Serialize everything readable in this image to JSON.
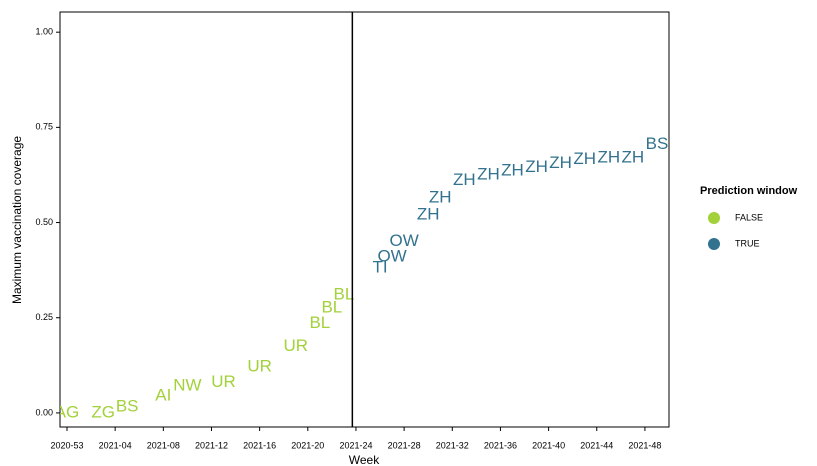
{
  "chart_data": {
    "type": "text-scatter",
    "x_label": "Week",
    "y_label": "Maximum vaccination coverage",
    "categories": [
      "2020-53",
      null,
      null,
      null,
      "2021-04",
      null,
      null,
      null,
      "2021-08",
      null,
      null,
      null,
      "2021-12",
      null,
      null,
      null,
      "2021-16",
      null,
      null,
      null,
      "2021-20",
      null,
      null,
      null,
      "2021-24",
      null,
      null,
      null,
      "2021-28",
      null,
      null,
      null,
      "2021-32",
      null,
      null,
      null,
      "2021-36",
      null,
      null,
      null,
      "2021-40",
      null,
      null,
      null,
      "2021-44",
      null,
      null,
      null,
      "2021-48",
      null,
      null
    ],
    "ylim": [
      -0.037,
      1.053
    ],
    "yticks": [
      {
        "value": 0,
        "label": "0.00"
      },
      {
        "value": 0.25,
        "label": "0.25"
      },
      {
        "value": 0.5,
        "label": "0.50"
      },
      {
        "value": 0.75,
        "label": "0.75"
      },
      {
        "value": 1,
        "label": "1.00"
      }
    ],
    "vline": 23.7,
    "legend_title": "Prediction window",
    "series": [
      {
        "name": "FALSE",
        "color": "#a3d13a",
        "values": [
          0,
          null,
          null,
          0,
          null,
          0.015,
          null,
          null,
          0.045,
          null,
          0.07,
          null,
          null,
          0.08,
          null,
          null,
          0.12,
          null,
          null,
          0.175,
          null,
          0.235,
          0.275,
          0.31,
          null,
          null,
          null,
          null,
          null,
          null,
          null,
          null,
          null,
          null,
          null,
          null,
          null,
          null,
          null,
          null,
          null,
          null,
          null,
          null,
          null,
          null,
          null,
          null,
          null,
          null,
          null
        ],
        "labels": [
          "AG",
          null,
          null,
          "ZG",
          null,
          "BS",
          null,
          null,
          "AI",
          null,
          "NW",
          null,
          null,
          "UR",
          null,
          null,
          "UR",
          null,
          null,
          "UR",
          null,
          "BL",
          "BL",
          "BL",
          null,
          null,
          null,
          null,
          null,
          null,
          null,
          null,
          null,
          null,
          null,
          null,
          null,
          null,
          null,
          null,
          null,
          null,
          null,
          null,
          null,
          null,
          null,
          null,
          null,
          null,
          null
        ]
      },
      {
        "name": "TRUE",
        "color": "#33728e",
        "values": [
          null,
          null,
          null,
          null,
          null,
          null,
          null,
          null,
          null,
          null,
          null,
          null,
          null,
          null,
          null,
          null,
          null,
          null,
          null,
          null,
          null,
          null,
          null,
          null,
          null,
          null,
          0.38,
          0.41,
          0.45,
          null,
          0.52,
          0.565,
          null,
          0.61,
          null,
          0.625,
          null,
          0.635,
          null,
          0.645,
          null,
          0.655,
          null,
          0.665,
          null,
          0.67,
          null,
          0.67,
          null,
          0.705,
          null
        ],
        "labels": [
          null,
          null,
          null,
          null,
          null,
          null,
          null,
          null,
          null,
          null,
          null,
          null,
          null,
          null,
          null,
          null,
          null,
          null,
          null,
          null,
          null,
          null,
          null,
          null,
          null,
          null,
          "TI",
          "OW",
          "OW",
          null,
          "ZH",
          "ZH",
          null,
          "ZH",
          null,
          "ZH",
          null,
          "ZH",
          null,
          "ZH",
          null,
          "ZH",
          null,
          "ZH",
          null,
          "ZH",
          null,
          "ZH",
          null,
          "BS",
          null
        ]
      }
    ]
  }
}
